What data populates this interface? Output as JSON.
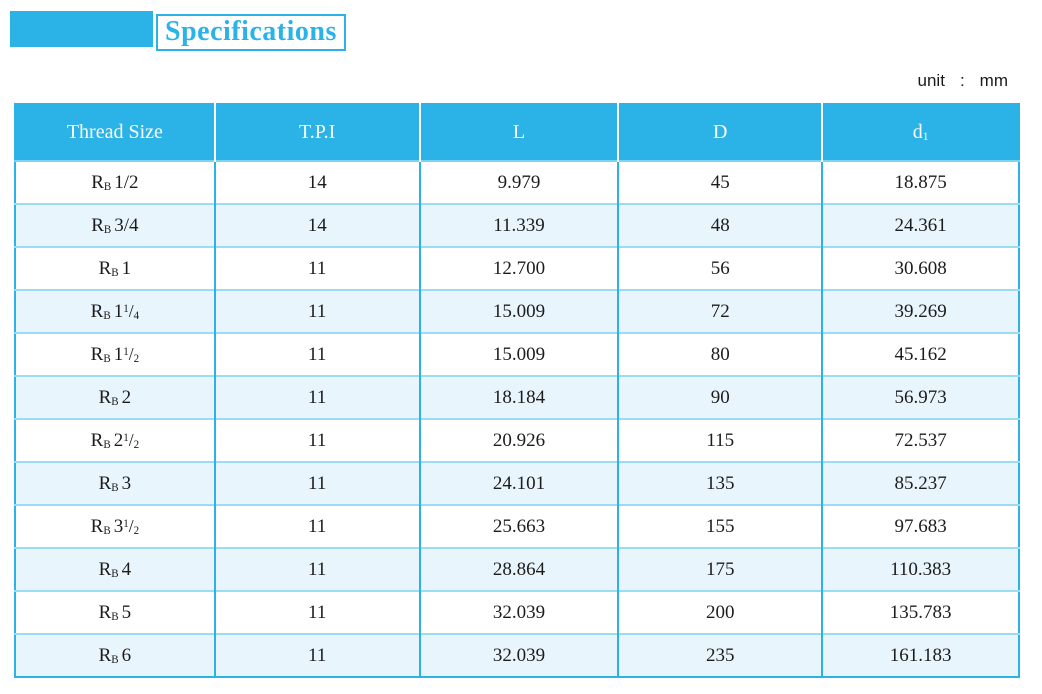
{
  "page": {
    "title": "Specifications",
    "unit": {
      "label": "unit",
      "separator": ":",
      "value": "mm"
    }
  },
  "colors": {
    "accent": "#2bb3e8",
    "row_alt_bg": "#e9f5fc",
    "row_line": "#9adcf5",
    "header_text": "#fbfdfe",
    "body_text": "#1c1c1c"
  },
  "table": {
    "thread_prefix": {
      "letter": "R",
      "sub": "B"
    },
    "columns": [
      {
        "key": "thread_size",
        "label": "Thread Size"
      },
      {
        "key": "tpi",
        "label": "T.P.I"
      },
      {
        "key": "L",
        "label": "L"
      },
      {
        "key": "D",
        "label": "D"
      },
      {
        "key": "d1",
        "label": "d",
        "sub": "1"
      }
    ],
    "rows": [
      {
        "thread": {
          "whole": "1/2"
        },
        "tpi": "14",
        "L": "9.979",
        "D": "45",
        "d1": "18.875"
      },
      {
        "thread": {
          "whole": "3/4"
        },
        "tpi": "14",
        "L": "11.339",
        "D": "48",
        "d1": "24.361"
      },
      {
        "thread": {
          "whole": "1"
        },
        "tpi": "11",
        "L": "12.700",
        "D": "56",
        "d1": "30.608"
      },
      {
        "thread": {
          "whole": "1",
          "frac": {
            "num": "1",
            "den": "4"
          }
        },
        "tpi": "11",
        "L": "15.009",
        "D": "72",
        "d1": "39.269"
      },
      {
        "thread": {
          "whole": "1",
          "frac": {
            "num": "1",
            "den": "2"
          }
        },
        "tpi": "11",
        "L": "15.009",
        "D": "80",
        "d1": "45.162"
      },
      {
        "thread": {
          "whole": "2"
        },
        "tpi": "11",
        "L": "18.184",
        "D": "90",
        "d1": "56.973"
      },
      {
        "thread": {
          "whole": "2",
          "frac": {
            "num": "1",
            "den": "2"
          }
        },
        "tpi": "11",
        "L": "20.926",
        "D": "115",
        "d1": "72.537"
      },
      {
        "thread": {
          "whole": "3"
        },
        "tpi": "11",
        "L": "24.101",
        "D": "135",
        "d1": "85.237"
      },
      {
        "thread": {
          "whole": "3",
          "frac": {
            "num": "1",
            "den": "2"
          }
        },
        "tpi": "11",
        "L": "25.663",
        "D": "155",
        "d1": "97.683"
      },
      {
        "thread": {
          "whole": "4"
        },
        "tpi": "11",
        "L": "28.864",
        "D": "175",
        "d1": "110.383"
      },
      {
        "thread": {
          "whole": "5"
        },
        "tpi": "11",
        "L": "32.039",
        "D": "200",
        "d1": "135.783"
      },
      {
        "thread": {
          "whole": "6"
        },
        "tpi": "11",
        "L": "32.039",
        "D": "235",
        "d1": "161.183"
      }
    ]
  }
}
